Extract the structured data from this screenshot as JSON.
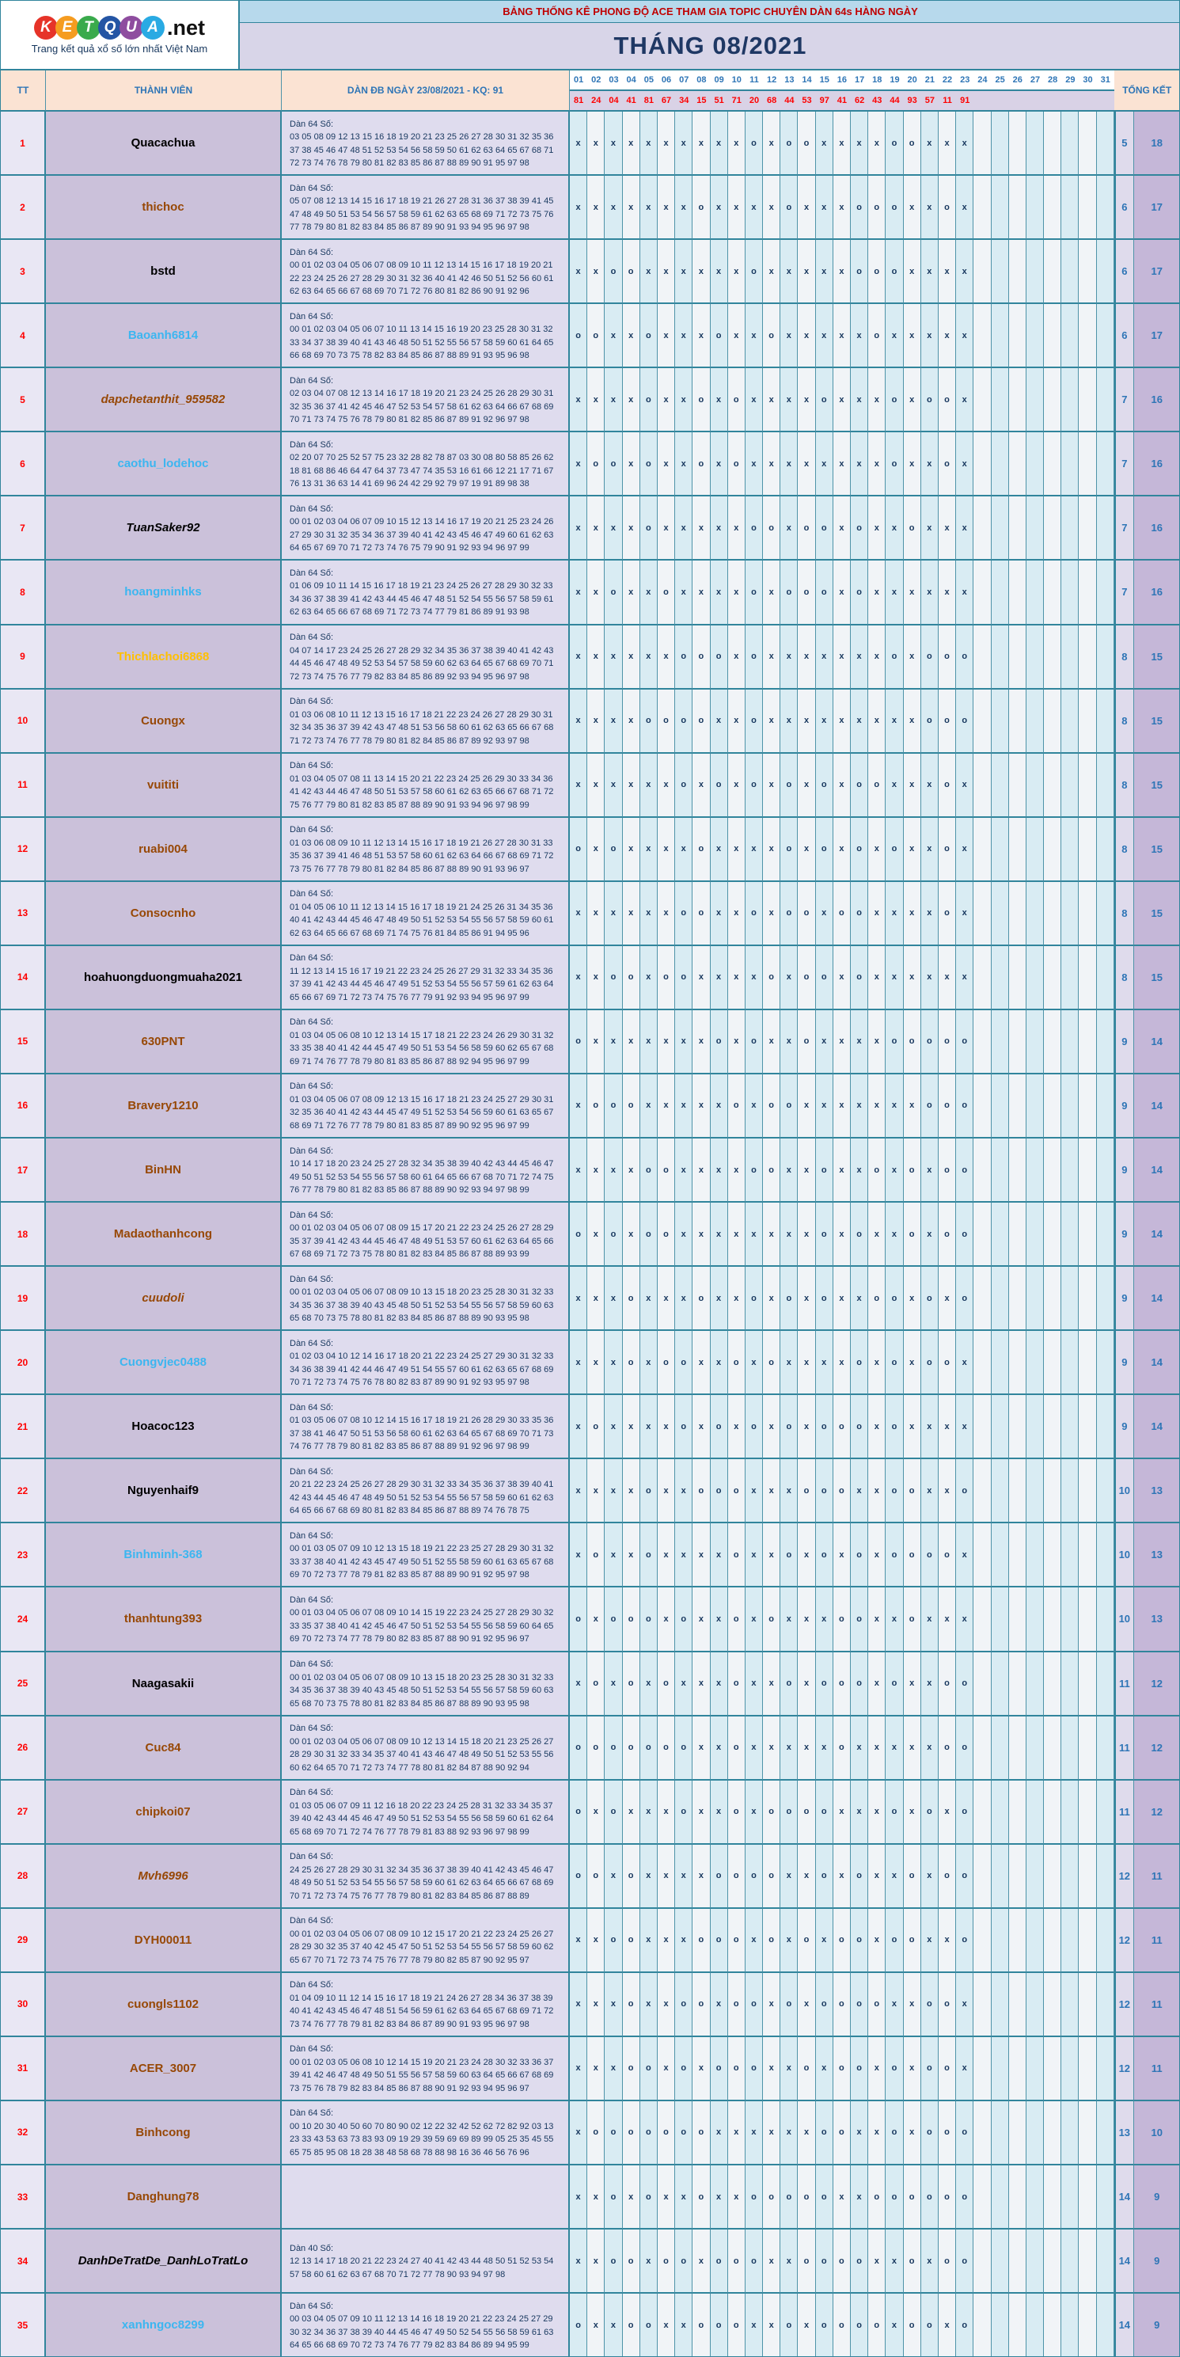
{
  "logo": {
    "letters": [
      {
        "ch": "K",
        "bg": "#e63329"
      },
      {
        "ch": "E",
        "bg": "#f59c20"
      },
      {
        "ch": "T",
        "bg": "#3aaa4c"
      },
      {
        "ch": "Q",
        "bg": "#2455a4"
      },
      {
        "ch": "U",
        "bg": "#8e4d9f"
      },
      {
        "ch": "A",
        "bg": "#29aae3"
      }
    ],
    "suffix": ".net",
    "tagline": "Trang kết quả xổ số lớn nhất Việt Nam"
  },
  "header": {
    "banner": "BẢNG THỐNG KÊ PHONG ĐỘ ACE THAM GIA TOPIC CHUYÊN DÀN 64s HÀNG NGÀY",
    "month_title": "THÁNG 08/2021"
  },
  "columns": {
    "tt": "TT",
    "member": "THÀNH VIÊN",
    "dan": "DÀN ĐB NGÀY 23/08/2021 - KQ: 91",
    "total": "TỔNG KẾT"
  },
  "days": [
    "01",
    "02",
    "03",
    "04",
    "05",
    "06",
    "07",
    "08",
    "09",
    "10",
    "11",
    "12",
    "13",
    "14",
    "15",
    "16",
    "17",
    "18",
    "19",
    "20",
    "21",
    "22",
    "23",
    "24",
    "25",
    "26",
    "27",
    "28",
    "29",
    "30",
    "31"
  ],
  "day_results": [
    "81",
    "24",
    "04",
    "41",
    "81",
    "67",
    "34",
    "15",
    "51",
    "71",
    "20",
    "68",
    "44",
    "53",
    "97",
    "41",
    "62",
    "43",
    "44",
    "93",
    "57",
    "11",
    "91",
    "",
    "",
    "",
    "",
    "",
    "",
    "",
    ""
  ],
  "rows": [
    {
      "tt": "1",
      "member": "Quacachua",
      "style": "black",
      "dan_label": "Dàn 64 Số:",
      "dan_lines": [
        "03 05 08 09 12 13 15 16 18 19 20 21 23 25 26 27 28 30 31 32 35 36",
        "37 38 45 46 47 48 51 52 53 54 56 58 59 50 61 62 63 64 65 67 68 71",
        "72 73 74 76 78 79 80 81 82 83 85 86 87 88 89 90 91 95 97 98"
      ],
      "marks": "xxxxxxxxxxoxooxxxxooxxx",
      "total_miss": "5",
      "total_hit": "18"
    },
    {
      "tt": "2",
      "member": "thichoc",
      "style": "brown",
      "dan_label": "Dàn 64 Số:",
      "dan_lines": [
        "05 07 08 12 13 14 15 16 17 18 19 21 26 27 28 31 36 37 38 39 41 45",
        "47 48 49 50 51 53 54 56 57 58 59 61 62 63 65 68 69 71 72 73 75 76",
        "77 78 79 80 81 82 83 84 85 86 87 89 90 91 93 94 95 96 97 98"
      ],
      "marks": "xxxxxxxoxxxxoxxxoooxxox",
      "total_miss": "6",
      "total_hit": "17"
    },
    {
      "tt": "3",
      "member": "bstd",
      "style": "black",
      "dan_label": "Dàn 64 Số:",
      "dan_lines": [
        "00 01 02 03 04 05 06 07 08 09 10 11 12 13 14 15 16 17 18 19 20 21",
        "22 23 24 25 26 27 28 29 30 31 32 36 40 41 42 46 50 51 52 56 60 61",
        "62 63 64 65 66 67 68 69 70 71 72 76 80 81 82 86 90 91 92 96"
      ],
      "marks": "xxooxxxxxxoxxxxxoooxxxx",
      "total_miss": "6",
      "total_hit": "17"
    },
    {
      "tt": "4",
      "member": "Baoanh6814",
      "style": "blue",
      "dan_label": "Dàn 64 Số:",
      "dan_lines": [
        "00 01 02 03 04 05 06 07 10 11 13 14 15 16 19 20 23 25 28 30 31 32",
        "33 34 37 38 39 40 41 43 46 48 50 51 52 55 56 57 58 59 60 61 64 65",
        "66 68 69 70 73 75 78 82 83 84 85 86 87 88 89 91 93 95 96 98"
      ],
      "marks": "ooxxoxxxoxxoxxxxxoxxxxx",
      "total_miss": "6",
      "total_hit": "17"
    },
    {
      "tt": "5",
      "member": "dapchetanthit_959582",
      "style": "brown italic",
      "dan_label": "Dàn 64 Số:",
      "dan_lines": [
        "02 03 04 07 08 12 13 14 16 17 18 19 20 21 23 24 25 26 28 29 30 31",
        "32 35 36 37 41 42 45 46 47 52 53 54 57 58 61 62 63 64 66 67 68 69",
        "70 71 73 74 75 76 78 79 80 81 82 85 86 87 89 91 92 96 97 98"
      ],
      "marks": "xxxxoxxoxoxxxxoxxxoxoox",
      "total_miss": "7",
      "total_hit": "16"
    },
    {
      "tt": "6",
      "member": "caothu_lodehoc",
      "style": "blue",
      "dan_label": "Dàn 64 Số:",
      "dan_lines": [
        "02 20 07 70 25 52 57 75 23 32 28 82 78 87 03 30 08 80 58 85 26 62",
        "18 81 68 86 46 64 47 64 37 73 47 74 35 53 16 61 66 12 21 17 71 67",
        "76 13 31 36 63 14 41 69 96 24 42 29 92 79 97 19 91 89 98 38"
      ],
      "marks": "xooxoxxoxoxxxxxxxxoxxox",
      "total_miss": "7",
      "total_hit": "16"
    },
    {
      "tt": "7",
      "member": "TuanSaker92",
      "style": "black italic",
      "dan_label": "Dàn 64 Số:",
      "dan_lines": [
        "00 01 02 03 04 06 07 09 10 15 12 13 14 16 17 19 20 21 25 23 24 26",
        "27 29 30 31 32 35 34 36 37 39 40 41 42 43 45 46 47 49 60 61 62 63",
        "64 65 67 69 70 71 72 73 74 76 75 79 90 91 92 93 94 96 97 99"
      ],
      "marks": "xxxxoxxxxxooxooxoxxoxxx",
      "total_miss": "7",
      "total_hit": "16"
    },
    {
      "tt": "8",
      "member": "hoangminhks",
      "style": "blue",
      "dan_label": "Dàn 64 Số:",
      "dan_lines": [
        "01 06 09 10 11 14 15 16 17 18 19 21 23 24 25 26 27 28 29 30 32 33",
        "34 36 37 38 39 41 42 43 44 45 46 47 48 51 52 54 55 56 57 58 59 61",
        "62 63 64 65 66 67 68 69 71 72 73 74 77 79 81 86 89 91 93 98"
      ],
      "marks": "xxoxxoxxxxoxoooxoxxxxxx",
      "total_miss": "7",
      "total_hit": "16"
    },
    {
      "tt": "9",
      "member": "Thichlachoi6868",
      "style": "orange",
      "dan_label": "Dàn 64 Số:",
      "dan_lines": [
        "04 07 14 17 23 24 25 26 27 28 29 32 34 35 36 37 38 39 40 41 42 43",
        "44 45 46 47 48 49 52 53 54 57 58 59 60 62 63 64 65 67 68 69 70 71",
        "72 73 74 75 76 77 79 82 83 84 85 86 89 92 93 94 95 96 97 98"
      ],
      "marks": "xxxxxxoooxoxxxxxxxoxooo",
      "total_miss": "8",
      "total_hit": "15"
    },
    {
      "tt": "10",
      "member": "Cuongx",
      "style": "brown",
      "dan_label": "Dàn 64 Số:",
      "dan_lines": [
        "01 03 06 08 10 11 12 13 15 16 17 18 21 22 23 24 26 27 28 29 30 31",
        "32 34 35 36 37 39 42 43 47 48 51 53 56 58 60 61 62 63 65 66 67 68",
        "71 72 73 74 76 77 78 79 80 81 82 84 85 86 87 89 92 93 97 98"
      ],
      "marks": "xxxxooooxxoxxxxxxxxxooo",
      "total_miss": "8",
      "total_hit": "15"
    },
    {
      "tt": "11",
      "member": "vuititi",
      "style": "brown",
      "dan_label": "Dàn 64 Số:",
      "dan_lines": [
        "01 03 04 05 07 08 11 13 14 15 20 21 22 23 24 25 26 29 30 33 34 36",
        "41 42 43 44 46 47 48 50 51 53 57 58 60 61 62 63 65 66 67 68 71 72",
        "75 76 77 79 80 81 82 83 85 87 88 89 90 91 93 94 96 97 98 99"
      ],
      "marks": "xxxxxxoxoxoxoxoxooxxxox",
      "total_miss": "8",
      "total_hit": "15"
    },
    {
      "tt": "12",
      "member": "ruabi004",
      "style": "brown",
      "dan_label": "Dàn 64 Số:",
      "dan_lines": [
        "01 03 06 08 09 10 11 12 13 14 15 16 17 18 19 21 26 27 28 30 31 33",
        "35 36 37 39 41 46 48 51 53 57 58 60 61 62 63 64 66 67 68 69 71 72",
        "73 75 76 77 78 79 80 81 82 84 85 86 87 88 89 90 91 93 96 97"
      ],
      "marks": "oxoxxxxoxxxxoxoxoxoxxox",
      "total_miss": "8",
      "total_hit": "15"
    },
    {
      "tt": "13",
      "member": "Consocnho",
      "style": "brown",
      "dan_label": "Dàn 64 Số:",
      "dan_lines": [
        "01 04 05 06 10 11 12 13 14 15 16 17 18 19 21 24 25 26 31 34 35 36",
        "40 41 42 43 44 45 46 47 48 49 50 51 52 53 54 55 56 57 58 59 60 61",
        "62 63 64 65 66 67 68 69 71 74 75 76 81 84 85 86 91 94 95 96"
      ],
      "marks": "xxxxxxooxxoxooxooxxxxox",
      "total_miss": "8",
      "total_hit": "15"
    },
    {
      "tt": "14",
      "member": "hoahuongduongmuaha2021",
      "style": "black",
      "dan_label": "Dàn 64 Số:",
      "dan_lines": [
        "11 12 13 14 15 16 17 19 21 22 23 24 25 26 27 29 31 32 33 34 35 36",
        "37 39 41 42 43 44 45 46 47 49 51 52 53 54 55 56 57 59 61 62 63 64",
        "65 66 67 69 71 72 73 74 75 76 77 79 91 92 93 94 95 96 97 99"
      ],
      "marks": "xxooxooxxxxoxooxoxxxxxx",
      "total_miss": "8",
      "total_hit": "15"
    },
    {
      "tt": "15",
      "member": "630PNT",
      "style": "brown",
      "dan_label": "Dàn 64 Số:",
      "dan_lines": [
        "01 03 04 05 06 08 10 12 13 14 15 17 18 21 22 23 24 26 29 30 31 32",
        "33 35 38 40 41 42 44 45 47 49 50 51 53 54 56 58 59 60 62 65 67 68",
        "69 71 74 76 77 78 79 80 81 83 85 86 87 88 92 94 95 96 97 99"
      ],
      "marks": "oxxxxxxxoxoxxoxxxxooooo",
      "total_miss": "9",
      "total_hit": "14"
    },
    {
      "tt": "16",
      "member": "Bravery1210",
      "style": "brown",
      "dan_label": "Dàn 64 Số:",
      "dan_lines": [
        "01 03 04 05 06 07 08 09 12 13 15 16 17 18 21 23 24 25 27 29 30 31",
        "32 35 36 40 41 42 43 44 45 47 49 51 52 53 54 56 59 60 61 63 65 67",
        "68 69 71 72 76 77 78 79 80 81 83 85 87 89 90 92 95 96 97 99"
      ],
      "marks": "xoooxxxxxoxooxxxxxxxooo",
      "total_miss": "9",
      "total_hit": "14"
    },
    {
      "tt": "17",
      "member": "BinHN",
      "style": "brown",
      "dan_label": "Dàn 64 Số:",
      "dan_lines": [
        "10 14 17 18 20 23 24 25 27 28 32 34 35 38 39 40 42 43 44 45 46 47",
        "49 50 51 52 53 54 55 56 57 58 60 61 64 65 66 67 68 70 71 72 74 75",
        "76 77 78 79 80 81 82 83 85 86 87 88 89 90 92 93 94 97 98 99"
      ],
      "marks": "xxxxooxxxxooxxoxxoxoxoo",
      "total_miss": "9",
      "total_hit": "14"
    },
    {
      "tt": "18",
      "member": "Madaothanhcong",
      "style": "brown",
      "dan_label": "Dàn 64 Số:",
      "dan_lines": [
        "00 01 02 03 04 05 06 07 08 09 15 17 20 21 22 23 24 25 26 27 28 29",
        "35 37 39 41 42 43 44 45 46 47 48 49 51 53 57 60 61 62 63 64 65 66",
        "67 68 69 71 72 73 75 78 80 81 82 83 84 85 86 87 88 89 93 99"
      ],
      "marks": "oxoxooxxxxxxxxoxoxxoxoo",
      "total_miss": "9",
      "total_hit": "14"
    },
    {
      "tt": "19",
      "member": "cuudoli",
      "style": "brown italic",
      "dan_label": "Dàn 64 Số:",
      "dan_lines": [
        "00 01 02 03 04 05 06 07 08 09 10 13 15 18 20 23 25 28 30 31 32 33",
        "34 35 36 37 38 39 40 43 45 48 50 51 52 53 54 55 56 57 58 59 60 63",
        "65 68 70 73 75 78 80 81 82 83 84 85 86 87 88 89 90 93 95 98"
      ],
      "marks": "xxxoxxxoxxoxoxoxxooxoxo",
      "total_miss": "9",
      "total_hit": "14"
    },
    {
      "tt": "20",
      "member": "Cuongvjec0488",
      "style": "blue",
      "dan_label": "Dàn 64 Số:",
      "dan_lines": [
        "01 02 03 04 10 12 14 16 17 18 20 21 22 23 24 25 27 29 30 31 32 33",
        "34 36 38 39 41 42 44 46 47 49 51 54 55 57 60 61 62 63 65 67 68 69",
        "70 71 72 73 74 75 76 78 80 82 83 87 89 90 91 92 93 95 97 98"
      ],
      "marks": "xxxoxooxxoxoxxxxoxoxoox",
      "total_miss": "9",
      "total_hit": "14"
    },
    {
      "tt": "21",
      "member": "Hoacoc123",
      "style": "black",
      "dan_label": "Dàn 64 Số:",
      "dan_lines": [
        "01 03 05 06 07 08 10 12 14 15 16 17 18 19 21 26 28 29 30 33 35 36",
        "37 38 41 46 47 50 51 53 56 58 60 61 62 63 64 65 67 68 69 70 71 73",
        "74 76 77 78 79 80 81 82 83 85 86 87 88 89 91 92 96 97 98 99"
      ],
      "marks": "xoxxxxoxoxoxoxoooxoxxxx",
      "total_miss": "9",
      "total_hit": "14"
    },
    {
      "tt": "22",
      "member": "Nguyenhaif9",
      "style": "black",
      "dan_label": "Dàn 64 Số:",
      "dan_lines": [
        "20 21 22 23 24 25 26 27 28 29 30 31 32 33 34 35 36 37 38 39 40 41",
        "42 43 44 45 46 47 48 49 50 51 52 53 54 55 56 57 58 59 60 61 62 63",
        "64 65 66 67 68 69 80 81 82 83 84 85 86 87 88 89 74 76 78 75"
      ],
      "marks": "xxxxoxxoooxxxoooxxooxxo",
      "total_miss": "10",
      "total_hit": "13"
    },
    {
      "tt": "23",
      "member": "Binhminh-368",
      "style": "blue",
      "dan_label": "Dàn 64 Số:",
      "dan_lines": [
        "00 01 03 05 07 09 10 12 13 15 18 19 21 22 23 25 27 28 29 30 31 32",
        "33 37 38 40 41 42 43 45 47 49 50 51 52 55 58 59 60 61 63 65 67 68",
        "69 70 72 73 77 78 79 81 82 83 85 87 88 89 90 91 92 95 97 98"
      ],
      "marks": "xoxxoxxxxoxxoxoxoxoooox",
      "total_miss": "10",
      "total_hit": "13"
    },
    {
      "tt": "24",
      "member": "thanhtung393",
      "style": "brown",
      "dan_label": "Dàn 64 Số:",
      "dan_lines": [
        "00 01 03 04 05 06 07 08 09 10 14 15 19 22 23 24 25 27 28 29 30 32",
        "33 35 37 38 40 41 42 45 46 47 50 51 52 53 54 55 56 58 59 60 64 65",
        "69 70 72 73 74 77 78 79 80 82 83 85 87 88 90 91 92 95 96 97"
      ],
      "marks": "oxoooxoxxoxoxxxooxxoxxx",
      "total_miss": "10",
      "total_hit": "13"
    },
    {
      "tt": "25",
      "member": "Naagasakii",
      "style": "black",
      "dan_label": "Dàn 64 Số:",
      "dan_lines": [
        "00 01 02 03 04 05 06 07 08 09 10 13 15 18 20 23 25 28 30 31 32 33",
        "34 35 36 37 38 39 40 43 45 48 50 51 52 53 54 55 56 57 58 59 60 63",
        "65 68 70 73 75 78 80 81 82 83 84 85 86 87 88 89 90 93 95 98"
      ],
      "marks": "xoxoxoxxxoxxoxoooxoxxoo",
      "total_miss": "11",
      "total_hit": "12"
    },
    {
      "tt": "26",
      "member": "Cuc84",
      "style": "brown",
      "dan_label": "Dàn 64 Số:",
      "dan_lines": [
        "00 01 02 03 04 05 06 07 08 09 10 12 13 14 15 18 20 21 23 25 26 27",
        "28 29 30 31 32 33 34 35 37 40 41 43 46 47 48 49 50 51 52 53 55 56",
        "60 62 64 65 70 71 72 73 74 77 78 80 81 82 84 87 88 90 92 94"
      ],
      "marks": "oooooooxxoxxxxxoxxxxxoo",
      "total_miss": "11",
      "total_hit": "12"
    },
    {
      "tt": "27",
      "member": "chipkoi07",
      "style": "brown",
      "dan_label": "Dàn 64 Số:",
      "dan_lines": [
        "01 03 05 06 07 09 11 12 16 18 20 22 23 24 25 28 31 32 33 34 35 37",
        "39 40 42 43 44 45 46 47 49 50 51 52 53 54 55 56 58 59 60 61 62 64",
        "65 68 69 70 71 72 74 76 77 78 79 81 83 88 92 93 96 97 98 99"
      ],
      "marks": "oxoxxxoxxoxooooxxxoxoxo",
      "total_miss": "11",
      "total_hit": "12"
    },
    {
      "tt": "28",
      "member": "Mvh6996",
      "style": "brown italic",
      "dan_label": "Dàn 64 Số:",
      "dan_lines": [
        "24 25 26 27 28 29 30 31 32 34 35 36 37 38 39 40 41 42 43 45 46 47",
        "48 49 50 51 52 53 54 55 56 57 58 59 60 61 62 63 64 65 66 67 68 69",
        "70 71 72 73 74 75 76 77 78 79 80 81 82 83 84 85 86 87 88 89"
      ],
      "marks": "ooxoxxxxooooxxoxoxxoxoo",
      "total_miss": "12",
      "total_hit": "11"
    },
    {
      "tt": "29",
      "member": "DYH00011",
      "style": "brown",
      "dan_label": "Dàn 64 Số:",
      "dan_lines": [
        "00 01 02 03 04 05 06 07 08 09 10 12 15 17 20 21 22 23 24 25 26 27",
        "28 29 30 32 35 37 40 42 45 47 50 51 52 53 54 55 56 57 58 59 60 62",
        "65 67 70 71 72 73 74 75 76 77 78 79 80 82 85 87 90 92 95 97"
      ],
      "marks": "xxooxxxoooxoxoxooxooxxo",
      "total_miss": "12",
      "total_hit": "11"
    },
    {
      "tt": "30",
      "member": "cuongls1102",
      "style": "brown",
      "dan_label": "Dàn 64 Số:",
      "dan_lines": [
        "01 04 09 10 11 12 14 15 16 17 18 19 21 24 26 27 28 34 36 37 38 39",
        "40 41 42 43 45 46 47 48 51 54 56 59 61 62 63 64 65 67 68 69 71 72",
        "73 74 76 77 78 79 81 82 83 84 86 87 89 90 91 93 95 96 97 98"
      ],
      "marks": "xxxoxxooxooxoxooooxxoox",
      "total_miss": "12",
      "total_hit": "11"
    },
    {
      "tt": "31",
      "member": "ACER_3007",
      "style": "brown",
      "dan_label": "Dàn 64 Số:",
      "dan_lines": [
        "00 01 02 03 05 06 08 10 12 14 15 19 20 21 23 24 28 30 32 33 36 37",
        "39 41 42 46 47 48 49 50 51 55 56 57 58 59 60 63 64 65 66 67 68 69",
        "73 75 76 78 79 82 83 84 85 86 87 88 90 91 92 93 94 95 96 97"
      ],
      "marks": "xxxooxoxoooxxoxooxoxoox",
      "total_miss": "12",
      "total_hit": "11"
    },
    {
      "tt": "32",
      "member": "Binhcong",
      "style": "brown",
      "dan_label": "Dàn 64 Số:",
      "dan_lines": [
        "00 10 20 30 40 50 60 70 80 90 02 12 22 32 42 52 62 72 82 92 03 13",
        "23 33 43 53 63 73 83 93 09 19 29 39 59 69 69 89 99 05 25 35 45 55",
        "65 75 85 95 08 18 28 38 48 58 68 78 88 98 16 36 46 56 76 96"
      ],
      "marks": "xoooooooxxxxxxooxxoxooo",
      "total_miss": "13",
      "total_hit": "10"
    },
    {
      "tt": "33",
      "member": "Danghung78",
      "style": "brown",
      "dan_label": "",
      "dan_lines": [],
      "marks": "xxoxoxxoxxoooooxxoooooo",
      "total_miss": "14",
      "total_hit": "9"
    },
    {
      "tt": "34",
      "member": "DanhDeTratDe_DanhLoTratLo",
      "style": "black italic",
      "dan_label": "Dàn 40 Số:",
      "dan_lines": [
        "12 13 14 17 18 20 21 22 23 24 27 40 41 42 43 44 48 50 51 52 53 54",
        "57 58 60 61 62 63 67 68 70 71 72 77 78 90 93 94 97 98"
      ],
      "marks": "xxooxooxoooxxooooxxoxoo",
      "total_miss": "14",
      "total_hit": "9"
    },
    {
      "tt": "35",
      "member": "xanhngoc8299",
      "style": "blue",
      "dan_label": "Dàn 64 Số:",
      "dan_lines": [
        "00 03 04 05 07 09 10 11 12 13 14 16 18 19 20 21 22 23 24 25 27 29",
        "30 32 34 36 37 38 39 40 44 45 46 47 49 50 52 54 55 56 58 59 61 63",
        "64 65 66 68 69 70 72 73 74 76 77 79 82 83 84 86 89 94 95 99"
      ],
      "marks": "oxxooxxoooxxoxooooxooxo",
      "total_miss": "14",
      "total_hit": "9"
    }
  ]
}
